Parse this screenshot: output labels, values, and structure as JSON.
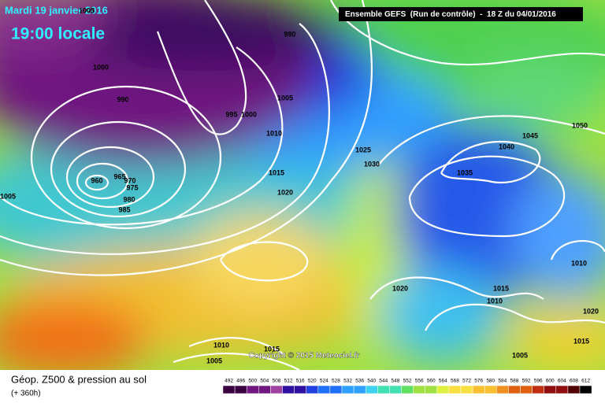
{
  "header": {
    "date": "Mardi 19 janvier 2016",
    "time": "19:00 locale",
    "run": "Ensemble GEFS  (Run de contrôle)  -  18 Z du 04/01/2016"
  },
  "footer": {
    "title": "Géop. Z500 & pression au sol",
    "lead": "(+ 360h)",
    "copyright": "Copyright © 2015 Meteociel.fr"
  },
  "scale": {
    "labels": [
      492,
      496,
      500,
      504,
      508,
      512,
      516,
      520,
      524,
      528,
      532,
      536,
      540,
      544,
      548,
      552,
      556,
      560,
      564,
      568,
      572,
      576,
      580,
      584,
      588,
      592,
      596,
      600,
      604,
      608,
      612
    ]
  },
  "isobar_labels": [
    1005,
    990,
    1000,
    990,
    1005,
    995,
    1000,
    1010,
    1025,
    1030,
    1015,
    960,
    965,
    970,
    975,
    980,
    985,
    1020,
    1005,
    1035,
    1040,
    1045,
    1050,
    1010,
    1020,
    1015,
    1010,
    1020,
    1015,
    1005,
    1010,
    1005,
    1015
  ]
}
